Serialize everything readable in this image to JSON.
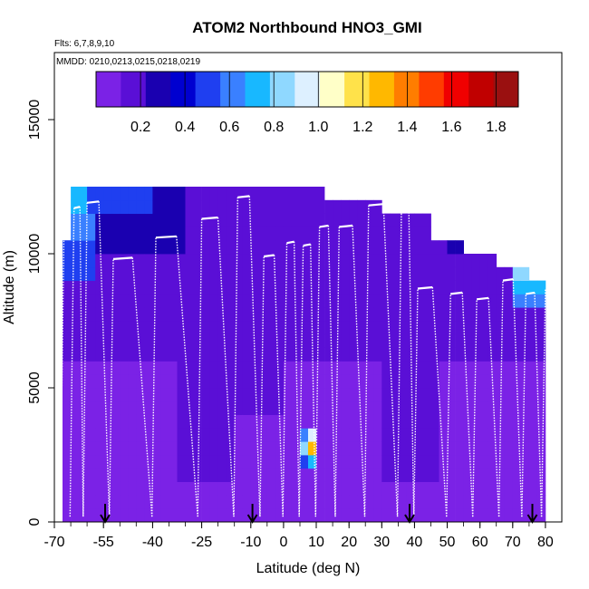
{
  "chart_data": {
    "type": "heatmap",
    "title": "ATOM2 Northbound HNO3_GMI",
    "flights_label": "Flts: 6,7,8,9,10",
    "dates_label": "MMDD: 0210,0213,0215,0218,0219",
    "xlabel": "Latitude (deg N)",
    "ylabel": "Altitude (m)",
    "xlim": [
      -70,
      85
    ],
    "ylim": [
      0,
      17500
    ],
    "x_ticks": [
      {
        "value": -70,
        "label": "-70"
      },
      {
        "value": -55,
        "label": "-55"
      },
      {
        "value": -40,
        "label": "-40"
      },
      {
        "value": -25,
        "label": "-25"
      },
      {
        "value": -10,
        "label": "-10"
      },
      {
        "value": 0,
        "label": "0"
      },
      {
        "value": 10,
        "label": "10"
      },
      {
        "value": 20,
        "label": "20"
      },
      {
        "value": 30,
        "label": "30"
      },
      {
        "value": 40,
        "label": "40"
      },
      {
        "value": 50,
        "label": "50"
      },
      {
        "value": 60,
        "label": "60"
      },
      {
        "value": 70,
        "label": "70"
      },
      {
        "value": 80,
        "label": "80"
      }
    ],
    "y_ticks": [
      {
        "value": 0,
        "label": "0"
      },
      {
        "value": 5000,
        "label": "5000"
      },
      {
        "value": 10000,
        "label": "10000"
      },
      {
        "value": 15000,
        "label": "15000"
      }
    ],
    "colorbar": {
      "min": 0.0,
      "max": 1.9,
      "ticks": [
        {
          "value": 0.2,
          "label": "0.2"
        },
        {
          "value": 0.4,
          "label": "0.4"
        },
        {
          "value": 0.6,
          "label": "0.6"
        },
        {
          "value": 0.8,
          "label": "0.8"
        },
        {
          "value": 1.0,
          "label": "1.0"
        },
        {
          "value": 1.2,
          "label": "1.2"
        },
        {
          "value": 1.4,
          "label": "1.4"
        },
        {
          "value": 1.6,
          "label": "1.6"
        },
        {
          "value": 1.8,
          "label": "1.8"
        }
      ],
      "colors": [
        "#7b22e6",
        "#5a0fd6",
        "#1a00b0",
        "#0000d0",
        "#1f3ff0",
        "#3a80ff",
        "#18b8ff",
        "#8fd8ff",
        "#ddf0ff",
        "#ffffc8",
        "#ffe24a",
        "#ffb800",
        "#ff7d00",
        "#ff3c00",
        "#f00000",
        "#c00000",
        "#9a1010"
      ]
    },
    "profile_top_altitudes": [
      {
        "lat": -67,
        "alt": 11500
      },
      {
        "lat": -64,
        "alt": 11700
      },
      {
        "lat": -60,
        "alt": 11900
      },
      {
        "lat": -52,
        "alt": 9800
      },
      {
        "lat": -39,
        "alt": 10600
      },
      {
        "lat": -25,
        "alt": 11300
      },
      {
        "lat": -14,
        "alt": 12100
      },
      {
        "lat": -6,
        "alt": 9900
      },
      {
        "lat": 1,
        "alt": 10400
      },
      {
        "lat": 6,
        "alt": 10300
      },
      {
        "lat": 11,
        "alt": 11000
      },
      {
        "lat": 17,
        "alt": 11000
      },
      {
        "lat": 26,
        "alt": 11800
      },
      {
        "lat": 36,
        "alt": 11700
      },
      {
        "lat": 41,
        "alt": 8700
      },
      {
        "lat": 51,
        "alt": 8500
      },
      {
        "lat": 59,
        "alt": 8300
      },
      {
        "lat": 67,
        "alt": 9000
      },
      {
        "lat": 74,
        "alt": 8500
      },
      {
        "lat": 80,
        "alt": 8700
      }
    ],
    "flight_boundary_markers": [
      -54.5,
      -9.5,
      38.5,
      76
    ]
  }
}
